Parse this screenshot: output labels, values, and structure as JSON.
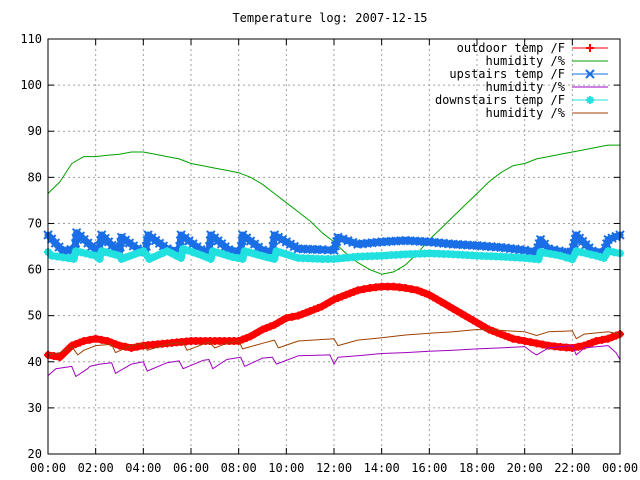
{
  "chart_data": {
    "type": "line",
    "title": "Temperature log: 2007-12-15",
    "xlabel": "",
    "ylabel": "",
    "ylim": [
      20,
      110
    ],
    "yticks": [
      "20",
      "30",
      "40",
      "50",
      "60",
      "70",
      "80",
      "90",
      "100",
      "110"
    ],
    "xlim": [
      "00:00",
      "24:00"
    ],
    "xticks": [
      "00:00",
      "02:00",
      "04:00",
      "06:00",
      "08:00",
      "10:00",
      "12:00",
      "14:00",
      "16:00",
      "18:00",
      "20:00",
      "22:00",
      "00:00"
    ],
    "grid": true,
    "legend_position": "top-right",
    "series": [
      {
        "name": "outdoor temp /F",
        "color": "#ff0000",
        "marker": "plus",
        "x": [
          "00:00",
          "00:30",
          "01:00",
          "01:30",
          "02:00",
          "02:30",
          "03:00",
          "03:30",
          "04:00",
          "05:00",
          "06:00",
          "07:00",
          "08:00",
          "08:30",
          "09:00",
          "09:30",
          "10:00",
          "10:30",
          "11:00",
          "11:30",
          "12:00",
          "12:30",
          "13:00",
          "13:30",
          "14:00",
          "14:30",
          "15:00",
          "15:30",
          "16:00",
          "16:30",
          "17:00",
          "17:30",
          "18:00",
          "18:30",
          "19:00",
          "19:30",
          "20:00",
          "20:30",
          "21:00",
          "21:30",
          "22:00",
          "22:30",
          "23:00",
          "23:30",
          "24:00"
        ],
        "y": [
          41.5,
          41,
          43.5,
          44.5,
          45,
          44.5,
          43.5,
          43,
          43.5,
          44,
          44.5,
          44.5,
          44.5,
          45.5,
          47,
          48,
          49.5,
          50,
          51,
          52,
          53.5,
          54.5,
          55.5,
          56,
          56.3,
          56.3,
          56,
          55.5,
          54.5,
          53,
          51.5,
          50,
          48.5,
          47,
          46,
          45,
          44.5,
          44,
          43.5,
          43.2,
          43,
          43.5,
          44.5,
          45,
          46
        ]
      },
      {
        "name": "humidity /%",
        "color": "#00a000",
        "marker": "none",
        "x": [
          "00:00",
          "00:30",
          "01:00",
          "01:30",
          "02:00",
          "02:30",
          "03:00",
          "03:30",
          "04:00",
          "04:30",
          "05:00",
          "05:30",
          "06:00",
          "06:30",
          "07:00",
          "07:30",
          "08:00",
          "08:30",
          "09:00",
          "09:30",
          "10:00",
          "10:30",
          "11:00",
          "11:30",
          "12:00",
          "12:30",
          "13:00",
          "13:30",
          "14:00",
          "14:30",
          "15:00",
          "15:30",
          "16:00",
          "16:30",
          "17:00",
          "17:30",
          "18:00",
          "18:30",
          "19:00",
          "19:30",
          "20:00",
          "20:30",
          "21:00",
          "21:30",
          "22:00",
          "22:30",
          "23:00",
          "23:30",
          "24:00"
        ],
        "y": [
          76.5,
          79,
          83,
          84.5,
          84.5,
          84.8,
          85,
          85.5,
          85.5,
          85,
          84.5,
          84,
          83,
          82.5,
          82,
          81.5,
          81,
          80,
          78.5,
          76.5,
          74.5,
          72.5,
          70.5,
          68,
          66,
          63.5,
          61.5,
          60,
          59,
          59.5,
          61,
          63.5,
          66.5,
          69,
          71.5,
          74,
          76.5,
          79,
          81,
          82.5,
          83,
          84,
          84.5,
          85,
          85.5,
          86,
          86.5,
          87,
          87
        ]
      },
      {
        "name": "upstairs temp /F",
        "color": "#1a6ee6",
        "marker": "cross",
        "x": [
          "00:00",
          "00:37",
          "01:08",
          "01:12",
          "01:50",
          "02:08",
          "02:15",
          "02:50",
          "03:00",
          "03:05",
          "03:45",
          "04:05",
          "04:12",
          "05:00",
          "05:30",
          "05:35",
          "06:25",
          "06:45",
          "06:50",
          "07:35",
          "08:05",
          "08:10",
          "09:00",
          "09:25",
          "09:30",
          "10:30",
          "11:30",
          "12:00",
          "12:10",
          "13:00",
          "14:00",
          "15:00",
          "16:00",
          "17:00",
          "18:00",
          "19:00",
          "20:00",
          "20:30",
          "20:40",
          "21:00",
          "21:40",
          "22:00",
          "22:10",
          "22:50",
          "23:20",
          "23:30",
          "24:00"
        ],
        "y": [
          67.5,
          64,
          64.5,
          68,
          65,
          64,
          67.5,
          64.5,
          63.8,
          67,
          64.5,
          63.8,
          67.5,
          64.5,
          63.8,
          67.5,
          64.3,
          63.8,
          67.5,
          64.3,
          63.8,
          67.5,
          64.2,
          63.8,
          67.5,
          64.5,
          64.3,
          64.2,
          67,
          65.5,
          66,
          66.3,
          66,
          65.5,
          65.2,
          64.8,
          64.2,
          63.8,
          66.5,
          64.5,
          63.8,
          63.8,
          67.5,
          64,
          63.7,
          66.5,
          67.5
        ]
      },
      {
        "name": "humidity /%",
        "color": "#a000c0",
        "marker": "none",
        "x": [
          "00:00",
          "00:20",
          "01:00",
          "01:10",
          "01:40",
          "01:45",
          "02:10",
          "02:40",
          "02:50",
          "03:30",
          "04:00",
          "04:10",
          "05:00",
          "05:30",
          "05:40",
          "06:30",
          "06:45",
          "06:55",
          "07:30",
          "08:05",
          "08:15",
          "09:00",
          "09:25",
          "09:35",
          "10:30",
          "11:50",
          "12:00",
          "12:10",
          "13:00",
          "14:00",
          "15:00",
          "16:00",
          "17:00",
          "18:00",
          "19:00",
          "20:00",
          "20:20",
          "20:30",
          "21:00",
          "21:30",
          "22:00",
          "22:10",
          "22:30",
          "23:30",
          "23:50",
          "24:00"
        ],
        "y": [
          37,
          38.5,
          39,
          36.8,
          38.5,
          39,
          39.5,
          39.8,
          37.5,
          39.5,
          40,
          38,
          39.8,
          40.2,
          38.5,
          40.3,
          40.5,
          38.5,
          40.5,
          41,
          39,
          40.8,
          41,
          39.5,
          41.3,
          41.5,
          39.5,
          41,
          41.3,
          41.8,
          42,
          42.3,
          42.5,
          42.8,
          43,
          43.3,
          42,
          41.5,
          43,
          43.3,
          43.5,
          41.5,
          43,
          43.5,
          42,
          40.5
        ]
      },
      {
        "name": "downstairs temp /F",
        "color": "#20e0e0",
        "marker": "asterisk",
        "x": [
          "00:00",
          "00:10",
          "01:05",
          "01:10",
          "02:00",
          "02:10",
          "02:15",
          "03:00",
          "03:05",
          "04:00",
          "04:10",
          "04:15",
          "05:00",
          "05:35",
          "05:40",
          "06:30",
          "06:50",
          "06:55",
          "07:45",
          "08:10",
          "08:15",
          "09:10",
          "09:30",
          "09:35",
          "10:30",
          "11:30",
          "12:00",
          "13:00",
          "14:00",
          "15:00",
          "16:00",
          "17:00",
          "18:00",
          "19:00",
          "20:00",
          "20:35",
          "20:40",
          "21:30",
          "22:00",
          "22:10",
          "23:00",
          "23:20",
          "23:30",
          "24:00"
        ],
        "y": [
          63.8,
          63,
          62.3,
          64,
          63,
          62.3,
          64,
          63,
          62.3,
          64,
          63,
          62.3,
          64,
          62.5,
          64.5,
          63,
          62.3,
          64,
          62.7,
          62.3,
          64,
          62.7,
          62.3,
          64,
          62.5,
          62.3,
          62.3,
          62.8,
          63,
          63.3,
          63.5,
          63.3,
          63,
          62.8,
          62.5,
          62.2,
          63.8,
          63,
          62.2,
          64,
          63,
          62.5,
          64,
          63.5
        ]
      },
      {
        "name": "humidity /%",
        "color": "#a04000",
        "marker": "none",
        "x": [
          "00:00",
          "00:30",
          "01:00",
          "01:15",
          "01:30",
          "02:00",
          "02:40",
          "02:50",
          "03:30",
          "04:00",
          "04:10",
          "05:00",
          "05:40",
          "05:50",
          "06:30",
          "06:45",
          "07:00",
          "07:30",
          "08:00",
          "08:10",
          "09:00",
          "09:30",
          "09:40",
          "10:30",
          "12:00",
          "12:10",
          "13:00",
          "14:00",
          "15:00",
          "16:00",
          "17:00",
          "18:00",
          "19:00",
          "20:00",
          "20:30",
          "21:00",
          "22:00",
          "22:10",
          "22:30",
          "23:30",
          "24:00"
        ],
        "y": [
          41.5,
          42,
          43.3,
          41.5,
          42.5,
          43.5,
          43.8,
          42,
          43.5,
          44,
          42.5,
          43.8,
          44.2,
          42.5,
          43.8,
          44.3,
          43,
          44,
          44.5,
          42.8,
          44,
          44.7,
          43,
          44.5,
          45,
          43.5,
          44.7,
          45.2,
          45.8,
          46.2,
          46.5,
          47,
          46.8,
          46.5,
          45.7,
          46.5,
          46.7,
          45,
          46,
          46.5,
          46
        ]
      }
    ]
  }
}
